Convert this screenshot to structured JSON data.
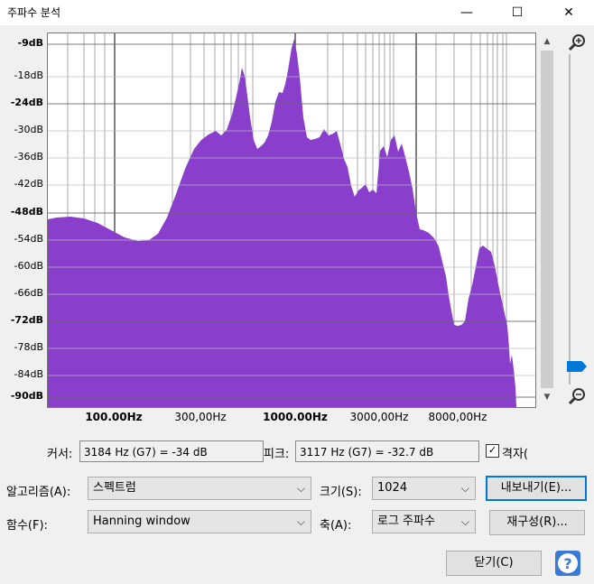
{
  "window": {
    "title": "주파수 분석",
    "minimize": "—",
    "maximize": "☐",
    "close": "✕"
  },
  "plot": {
    "fill_color": "#8a3fcc",
    "y_labels": [
      "-9dB",
      "-18dB",
      "-24dB",
      "-30dB",
      "-36dB",
      "-42dB",
      "-48dB",
      "-54dB",
      "-60dB",
      "-66dB",
      "-72dB",
      "-78dB",
      "-84dB",
      "-90dB"
    ],
    "y_bold": [
      true,
      false,
      true,
      false,
      false,
      false,
      true,
      false,
      false,
      false,
      true,
      false,
      false,
      true
    ],
    "x_labels": [
      {
        "text": "100.00Hz",
        "bold": true
      },
      {
        "text": "300,00Hz",
        "bold": false
      },
      {
        "text": "1000.00Hz",
        "bold": true
      },
      {
        "text": "3000,00Hz",
        "bold": false
      },
      {
        "text": "8000,00Hz",
        "bold": false
      }
    ]
  },
  "readout": {
    "cursor_label": "커서:",
    "cursor_value": "3184 Hz (G7) = -34 dB",
    "peak_label": "피크:",
    "peak_value": "3117 Hz (G7) = -32.7 dB",
    "grid_checked": true,
    "grid_label": "격자(",
    "check_mark": "✓"
  },
  "controls": {
    "algorithm_label": "알고리즘(A):",
    "algorithm_value": "스펙트럼",
    "size_label": "크기(S):",
    "size_value": "1024",
    "export_button": "내보내기(E)...",
    "function_label": "함수(F):",
    "function_value": "Hanning window",
    "axis_label": "축(A):",
    "axis_value": "로그 주파수",
    "replot_button": "재구성(R)...",
    "close_button": "닫기(C)",
    "help_symbol": "?",
    "chevron": "⌵",
    "scroll_up": "▲",
    "scroll_down": "▼"
  }
}
